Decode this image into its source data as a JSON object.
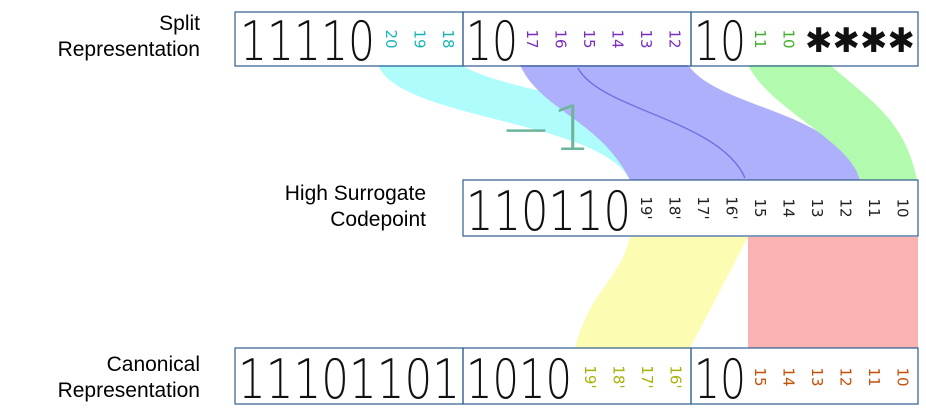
{
  "labels": {
    "split": [
      "Split",
      "Representation"
    ],
    "high": [
      "High Surrogate",
      "Codepoint"
    ],
    "canonical": [
      "Canonical",
      "Representation"
    ]
  },
  "minus_one": "−1",
  "colors": {
    "cyan_band": "#aefcfc",
    "purple_band": "#aeb0fb",
    "green_band": "#b2fbae",
    "yellow_band": "#fcfcb2",
    "red_band": "#fbb2b2",
    "teal_text": "#1ab5b5",
    "purple_text": "#7b2fbe",
    "green_text": "#3cb02a",
    "yellow_text": "#a9b20a",
    "orange_text": "#c4500a",
    "box_border": "#2f5a8e",
    "minus_one": "#6db59a"
  },
  "split": {
    "byte1": {
      "prefix": "11110",
      "bits": [
        {
          "t": "20",
          "c": "teal_text"
        },
        {
          "t": "19",
          "c": "teal_text"
        },
        {
          "t": "18",
          "c": "teal_text"
        }
      ]
    },
    "byte2": {
      "prefix": "10",
      "bits": [
        {
          "t": "17",
          "c": "purple_text"
        },
        {
          "t": "16",
          "c": "purple_text"
        },
        {
          "t": "15",
          "c": "purple_text"
        },
        {
          "t": "14",
          "c": "purple_text"
        },
        {
          "t": "13",
          "c": "purple_text"
        },
        {
          "t": "12",
          "c": "purple_text"
        }
      ]
    },
    "byte3": {
      "prefix": "10",
      "bits": [
        {
          "t": "11",
          "c": "green_text"
        },
        {
          "t": "10",
          "c": "green_text"
        }
      ],
      "rest": "✱✱✱✱"
    }
  },
  "high": {
    "prefix": "110110",
    "bits": [
      {
        "t": "19'",
        "c": "dark"
      },
      {
        "t": "18'",
        "c": "dark"
      },
      {
        "t": "17'",
        "c": "dark"
      },
      {
        "t": "16'",
        "c": "dark"
      },
      {
        "t": "15",
        "c": "dark"
      },
      {
        "t": "14",
        "c": "dark"
      },
      {
        "t": "13",
        "c": "dark"
      },
      {
        "t": "12",
        "c": "dark"
      },
      {
        "t": "11",
        "c": "dark"
      },
      {
        "t": "10",
        "c": "dark"
      }
    ]
  },
  "canonical": {
    "byte1": {
      "prefix": "11101101"
    },
    "byte2": {
      "prefix": "1010",
      "bits": [
        {
          "t": "19'",
          "c": "yellow_text"
        },
        {
          "t": "18'",
          "c": "yellow_text"
        },
        {
          "t": "17'",
          "c": "yellow_text"
        },
        {
          "t": "16'",
          "c": "yellow_text"
        }
      ]
    },
    "byte3": {
      "prefix": "10",
      "bits": [
        {
          "t": "15",
          "c": "orange_text"
        },
        {
          "t": "14",
          "c": "orange_text"
        },
        {
          "t": "13",
          "c": "orange_text"
        },
        {
          "t": "12",
          "c": "orange_text"
        },
        {
          "t": "11",
          "c": "orange_text"
        },
        {
          "t": "10",
          "c": "orange_text"
        }
      ]
    }
  }
}
